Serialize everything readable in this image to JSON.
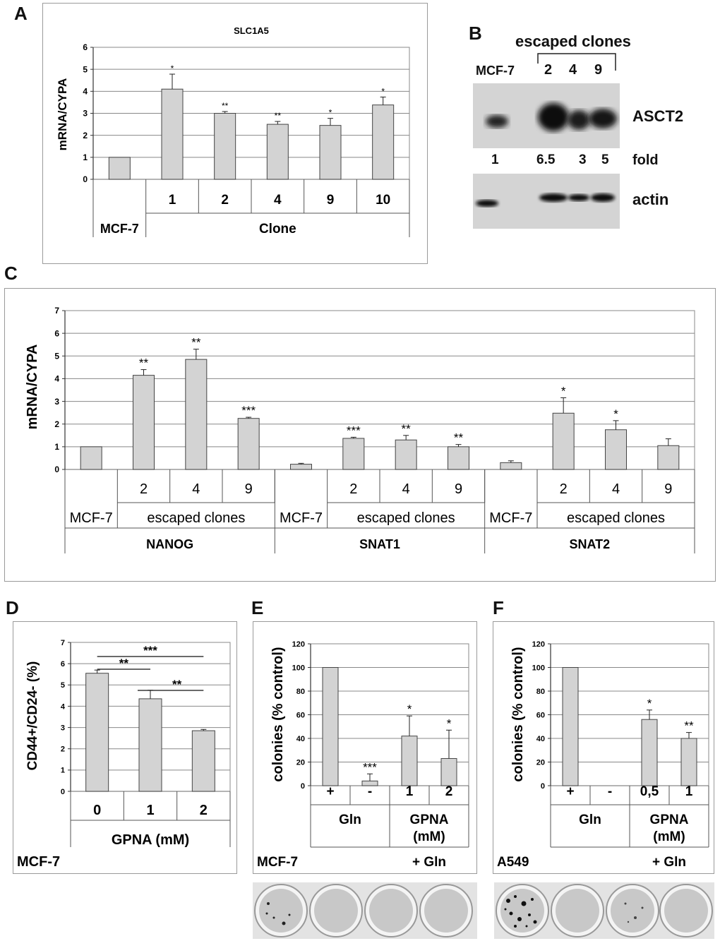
{
  "panels": {
    "A": "A",
    "B": "B",
    "C": "C",
    "D": "D",
    "E": "E",
    "F": "F"
  },
  "chart_data": [
    {
      "id": "A",
      "type": "bar",
      "title": "SLC1A5",
      "ylabel": "mRNA/CYPA",
      "ylim": [
        0,
        6
      ],
      "yticks": [
        "0",
        "1",
        "2",
        "3",
        "4",
        "5",
        "6"
      ],
      "categories": [
        "MCF-7",
        "1",
        "2",
        "4",
        "9",
        "10"
      ],
      "values": [
        1,
        4.1,
        3.0,
        2.5,
        2.45,
        3.38
      ],
      "errors": [
        0,
        0.68,
        0.08,
        0.13,
        0.32,
        0.36
      ],
      "significance": [
        "",
        "*",
        "**",
        "**",
        "*",
        "*"
      ],
      "group_labels": {
        "control": "MCF-7",
        "clones": "Clone"
      }
    },
    {
      "id": "C",
      "type": "bar",
      "ylabel": "mRNA/CYPA",
      "ylim": [
        0,
        7
      ],
      "yticks": [
        "0",
        "1",
        "2",
        "3",
        "4",
        "5",
        "6",
        "7"
      ],
      "categories": [
        "MCF-7",
        "2",
        "4",
        "9",
        "MCF-7",
        "2",
        "4",
        "9",
        "MCF-7",
        "2",
        "4",
        "9"
      ],
      "values": [
        1,
        4.15,
        4.85,
        2.25,
        0.23,
        1.37,
        1.3,
        1.0,
        0.3,
        2.48,
        1.75,
        1.05
      ],
      "errors": [
        0,
        0.25,
        0.45,
        0.05,
        0.04,
        0.05,
        0.2,
        0.1,
        0.08,
        0.68,
        0.4,
        0.3
      ],
      "significance": [
        "",
        "**",
        "**",
        "***",
        "",
        "***",
        "**",
        "**",
        "",
        "*",
        "*",
        ""
      ],
      "groups": [
        "NANOG",
        "SNAT1",
        "SNAT2"
      ],
      "subgroup_labels": {
        "control": "MCF-7",
        "clones": "escaped clones"
      }
    },
    {
      "id": "D",
      "type": "bar",
      "ylabel": "CD44+/CD24- (%)",
      "xlabel": "GPNA (mM)",
      "ylim": [
        0,
        7
      ],
      "yticks": [
        "0",
        "1",
        "2",
        "3",
        "4",
        "5",
        "6",
        "7"
      ],
      "categories": [
        "0",
        "1",
        "2"
      ],
      "values": [
        5.55,
        4.35,
        2.85
      ],
      "errors": [
        0.15,
        0.4,
        0.06
      ],
      "comparisons": [
        {
          "from": 0,
          "to": 2,
          "label": "***"
        },
        {
          "from": 0,
          "to": 1,
          "label": "**"
        },
        {
          "from": 1,
          "to": 2,
          "label": "**"
        }
      ],
      "cell_line": "MCF-7"
    },
    {
      "id": "E",
      "type": "bar",
      "ylabel": "colonies (% control)",
      "ylim": [
        0,
        120
      ],
      "yticks": [
        "0",
        "20",
        "40",
        "60",
        "80",
        "100",
        "120"
      ],
      "categories": [
        "+",
        "-",
        "1",
        "2"
      ],
      "values": [
        100,
        4,
        42,
        23
      ],
      "errors": [
        0,
        6,
        17,
        24
      ],
      "significance": [
        "",
        "***",
        "*",
        "*"
      ],
      "group_labels": [
        "Gln",
        "GPNA",
        "(mM)",
        "+ Gln"
      ],
      "cell_line": "MCF-7"
    },
    {
      "id": "F",
      "type": "bar",
      "ylabel": "colonies (% control)",
      "ylim": [
        0,
        120
      ],
      "yticks": [
        "0",
        "20",
        "40",
        "60",
        "80",
        "100",
        "120"
      ],
      "categories": [
        "+",
        "-",
        "0,5",
        "1"
      ],
      "values": [
        100,
        0,
        56,
        40
      ],
      "errors": [
        0,
        0,
        8,
        5
      ],
      "significance": [
        "",
        "",
        "*",
        "**"
      ],
      "group_labels": [
        "Gln",
        "GPNA",
        "(mM)",
        "+ Gln"
      ],
      "cell_line": "A549"
    }
  ],
  "western_blot": {
    "header": "escaped clones",
    "lanes": [
      "MCF-7",
      "2",
      "4",
      "9"
    ],
    "asct2_label": "ASCT2",
    "folds": [
      "1",
      "6.5",
      "3",
      "5"
    ],
    "fold_label": "fold",
    "actin_label": "actin"
  },
  "colors": {
    "bar": "#d3d3d3",
    "bar_stroke": "#444444",
    "grid": "#888888",
    "frame": "#9a9a9a"
  }
}
